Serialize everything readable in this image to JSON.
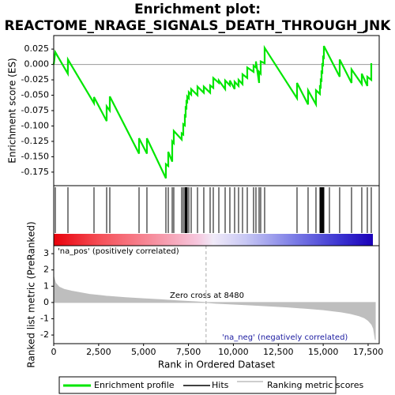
{
  "chart_data": {
    "type": "gsea",
    "title": "Enrichment plot:",
    "subtitle": "REACTOME_NRAGE_SIGNALS_DEATH_THROUGH_JNK",
    "xlabel": "Rank in Ordered Dataset",
    "ylabel": "Enrichment score (ES)",
    "y2label": "Ranked list metric (PreRanked)",
    "pos_label": "'na_pos' (positively correlated)",
    "neg_label": "'na_neg' (negatively correlated)",
    "zero_cross_label": "Zero cross at 8480",
    "zero_cross": 8480,
    "xlim": [
      0,
      18117
    ],
    "xticks": [
      0,
      {
        "value": 2500,
        "label": "2,500"
      },
      {
        "value": 5000,
        "label": "5,000"
      },
      {
        "value": 7500,
        "label": "7,500"
      },
      {
        "value": 10000,
        "label": "10,000"
      },
      {
        "value": 12500,
        "label": "12,500"
      },
      {
        "value": 15000,
        "label": "15,000"
      },
      {
        "value": 17500,
        "label": "17,500"
      }
    ],
    "ylim": [
      -0.197,
      0.047
    ],
    "yticks": [
      0.025,
      {
        "value": 0,
        "label": "0.000"
      },
      -0.025,
      {
        "value": -0.05,
        "label": "-0.050"
      },
      -0.075,
      {
        "value": -0.1,
        "label": "-0.100"
      },
      -0.125,
      {
        "value": -0.15,
        "label": "-0.150"
      },
      -0.175
    ],
    "y2lim": [
      -2.53,
      3.49
    ],
    "y2ticks": [
      3,
      2,
      1,
      0,
      -1,
      -2
    ],
    "profile": {
      "name": "Enrichment profile",
      "color": "#00e600",
      "x": [
        0,
        88,
        785,
        791,
        2242,
        2242,
        2946,
        2946,
        3122,
        3122,
        4749,
        4749,
        5188,
        5188,
        6244,
        6244,
        6376,
        6376,
        6596,
        6596,
        6683,
        6683,
        7123,
        7123,
        7211,
        7211,
        7299,
        7299,
        7343,
        7343,
        7387,
        7387,
        7431,
        7431,
        7519,
        7519,
        7651,
        7651,
        8003,
        8003,
        8354,
        8354,
        8706,
        8706,
        8882,
        8882,
        9190,
        9190,
        9542,
        9542,
        9805,
        9805,
        10069,
        10069,
        10289,
        10289,
        10509,
        10509,
        10773,
        10773,
        11124,
        11124,
        11256,
        11256,
        11432,
        11432,
        11520,
        11520,
        11740,
        11740,
        13543,
        13543,
        14158,
        14158,
        14598,
        14598,
        14818,
        14818,
        14862,
        14862,
        14906,
        14906,
        14950,
        14950,
        14994,
        14994,
        15038,
        15038,
        15917,
        15917,
        16577,
        16577,
        17148,
        17148,
        17456,
        17456,
        17676,
        17676
      ],
      "values": [
        0,
        0.02,
        -0.015,
        0.008,
        -0.063,
        -0.053,
        -0.092,
        -0.068,
        -0.075,
        -0.052,
        -0.145,
        -0.12,
        -0.145,
        -0.12,
        -0.185,
        -0.162,
        -0.165,
        -0.142,
        -0.158,
        -0.125,
        -0.128,
        -0.108,
        -0.122,
        -0.112,
        -0.114,
        -0.097,
        -0.099,
        -0.083,
        -0.084,
        -0.07,
        -0.071,
        -0.06,
        -0.061,
        -0.052,
        -0.055,
        -0.045,
        -0.049,
        -0.04,
        -0.05,
        -0.036,
        -0.046,
        -0.036,
        -0.046,
        -0.034,
        -0.038,
        -0.022,
        -0.03,
        -0.026,
        -0.04,
        -0.026,
        -0.034,
        -0.026,
        -0.04,
        -0.028,
        -0.035,
        -0.025,
        -0.032,
        -0.016,
        -0.022,
        -0.005,
        -0.012,
        -0.002,
        -0.005,
        0.005,
        -0.03,
        -0.012,
        -0.015,
        0.005,
        0.002,
        0.027,
        -0.055,
        -0.03,
        -0.065,
        -0.042,
        -0.065,
        -0.042,
        -0.048,
        -0.036,
        -0.037,
        -0.025,
        -0.026,
        -0.012,
        -0.013,
        0.0,
        -0.001,
        0.012,
        0.011,
        0.03,
        -0.02,
        0.008,
        -0.03,
        -0.008,
        -0.032,
        -0.015,
        -0.035,
        -0.02,
        -0.025,
        0.002
      ]
    },
    "hits": {
      "name": "Hits",
      "color": "#000000",
      "x": [
        88,
        791,
        2242,
        2946,
        3122,
        4749,
        5188,
        6244,
        6376,
        6596,
        6683,
        7123,
        7211,
        7299,
        7343,
        7387,
        7431,
        7519,
        7651,
        8003,
        8354,
        8706,
        8882,
        9190,
        9542,
        9805,
        10069,
        10289,
        10509,
        10773,
        11124,
        11256,
        11432,
        11520,
        11740,
        13543,
        14158,
        14598,
        14818,
        14862,
        14906,
        14950,
        14994,
        15038,
        15346,
        15917,
        16577,
        17148,
        17456,
        17676
      ]
    },
    "metric": {
      "name": "Ranking metric scores",
      "color": "#bebebe",
      "x": [
        0,
        100,
        300,
        600,
        1000,
        2000,
        3000,
        4000,
        5000,
        6000,
        7000,
        8000,
        8480,
        9000,
        10000,
        11000,
        12000,
        13000,
        14000,
        15000,
        16000,
        16500,
        17000,
        17300,
        17500,
        17700,
        17800,
        17900
      ],
      "values": [
        1.6,
        1.2,
        0.95,
        0.8,
        0.7,
        0.5,
        0.38,
        0.3,
        0.23,
        0.17,
        0.1,
        0.04,
        0,
        -0.05,
        -0.1,
        -0.16,
        -0.22,
        -0.28,
        -0.36,
        -0.45,
        -0.58,
        -0.68,
        -0.82,
        -0.95,
        -1.1,
        -1.35,
        -1.6,
        -2.3
      ]
    }
  }
}
